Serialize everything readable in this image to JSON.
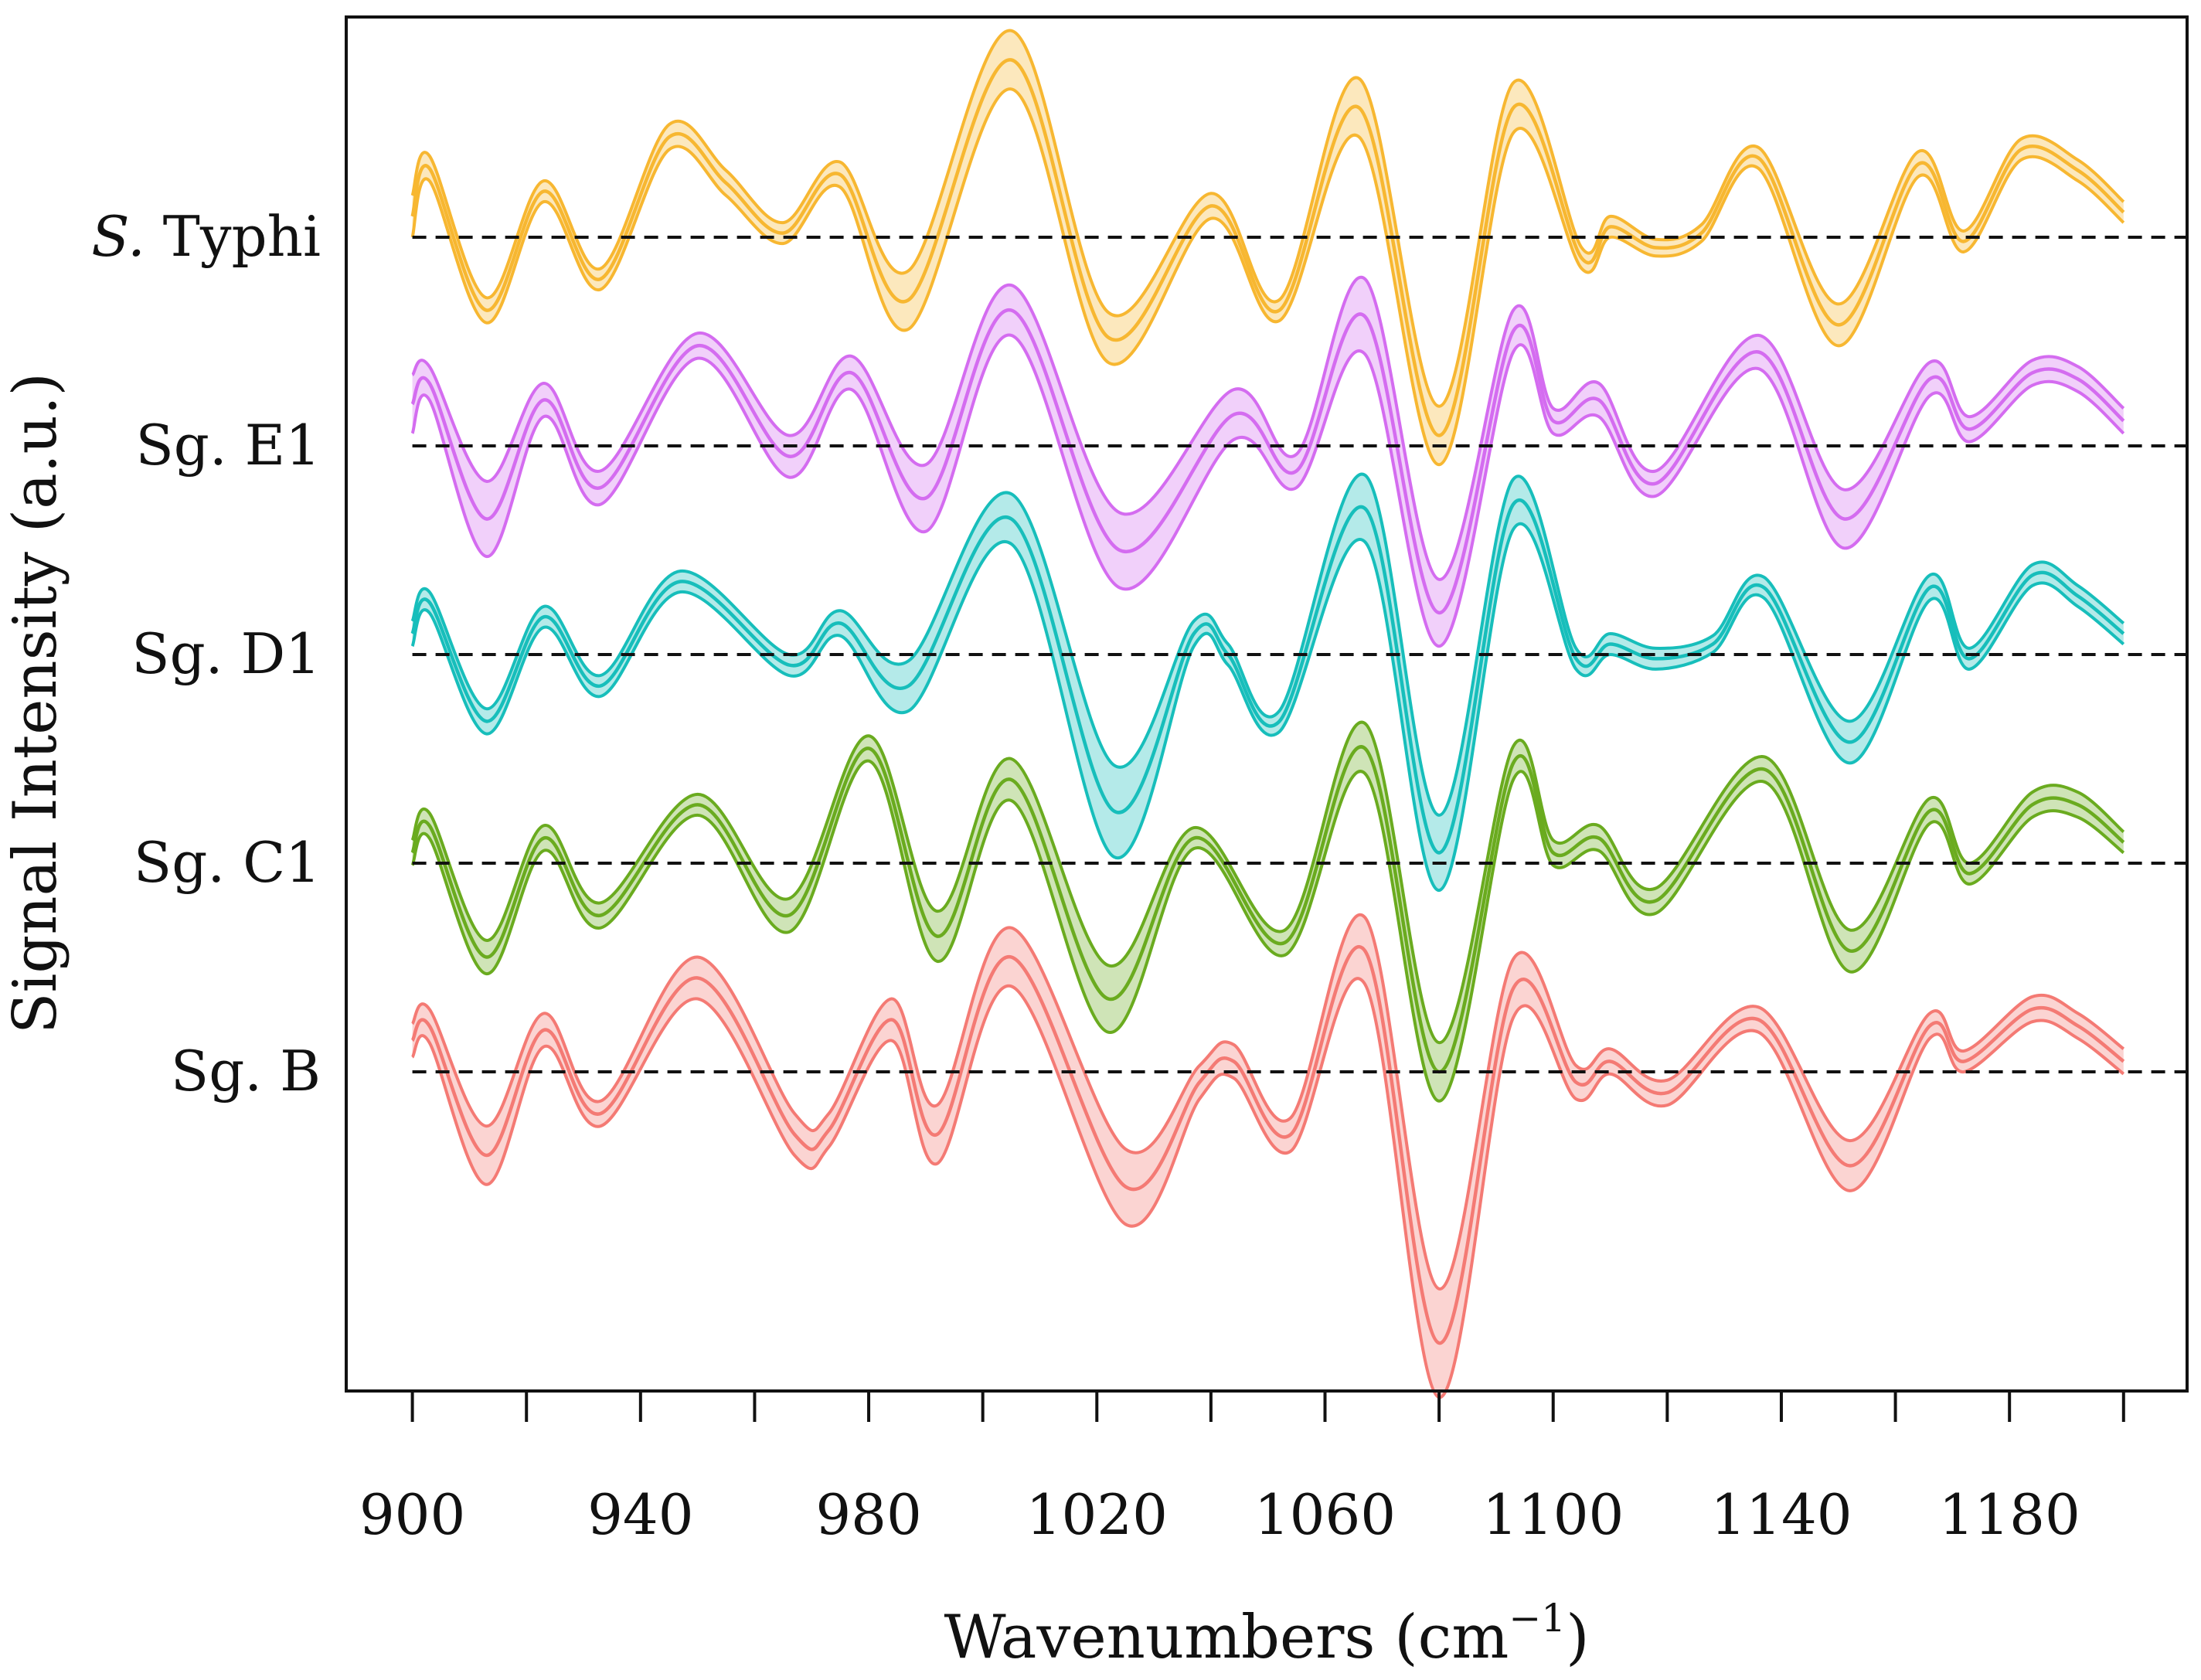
{
  "chart_data": {
    "type": "line",
    "title": "",
    "xlabel": "Wavenumbers (cm",
    "xlabel_sup": "−1",
    "xlabel_close": ")",
    "ylabel": "Signal Intensity (a.u.)",
    "xlim": [
      880,
      1205
    ],
    "ylim": [
      -1.3,
      7.2
    ],
    "xticks": [
      900,
      920,
      940,
      960,
      980,
      1000,
      1020,
      1040,
      1060,
      1080,
      1100,
      1120,
      1140,
      1160,
      1180,
      1200
    ],
    "xtick_labels": [
      "900",
      "940",
      "980",
      "1020",
      "1060",
      "1100",
      "1140",
      "1180"
    ],
    "grid": false,
    "legend": "inline labels at left of each baseline",
    "baseline_style": "dashed",
    "series": [
      {
        "name": "S. Typhi",
        "name_prefix": "S.",
        "name_rest": " Typhi",
        "color": "#F7B731",
        "offset": 6,
        "x": [
          900,
          903,
          913,
          923,
          933,
          945,
          955,
          965,
          975,
          987,
          1005,
          1022,
          1040,
          1052,
          1066,
          1080,
          1093,
          1105,
          1110,
          1118,
          1126,
          1136,
          1150,
          1164,
          1172,
          1182,
          1192,
          1200
        ],
        "mean": [
          0.1,
          0.33,
          -0.35,
          0.22,
          -0.2,
          0.48,
          0.26,
          0.02,
          0.3,
          -0.3,
          0.85,
          -0.48,
          0.15,
          -0.35,
          0.62,
          -0.95,
          0.62,
          -0.1,
          0.05,
          -0.05,
          0.02,
          0.38,
          -0.42,
          0.35,
          -0.02,
          0.42,
          0.32,
          0.12
        ],
        "band": [
          0.1,
          0.06,
          0.06,
          0.05,
          0.05,
          0.06,
          0.06,
          0.05,
          0.06,
          0.14,
          0.14,
          0.12,
          0.06,
          0.05,
          0.14,
          0.14,
          0.12,
          0.05,
          0.05,
          0.04,
          0.04,
          0.05,
          0.1,
          0.06,
          0.05,
          0.05,
          0.05,
          0.05
        ]
      },
      {
        "name": "Sg. E1",
        "name_prefix": "",
        "name_rest": "Sg. E1",
        "color": "#D46CF0",
        "offset": 5,
        "x": [
          900,
          903,
          913,
          923,
          933,
          950,
          966,
          977,
          990,
          1005,
          1024,
          1044,
          1055,
          1067,
          1080,
          1093,
          1100,
          1108,
          1118,
          1136,
          1151,
          1166,
          1173,
          1184,
          1192,
          1200
        ],
        "mean": [
          0.2,
          0.3,
          -0.35,
          0.22,
          -0.2,
          0.48,
          -0.05,
          0.35,
          -0.25,
          0.65,
          -0.5,
          0.15,
          -0.12,
          0.62,
          -0.8,
          0.55,
          0.12,
          0.22,
          -0.18,
          0.45,
          -0.35,
          0.32,
          0.08,
          0.35,
          0.32,
          0.12
        ],
        "band": [
          0.14,
          0.08,
          0.18,
          0.08,
          0.08,
          0.06,
          0.1,
          0.08,
          0.16,
          0.12,
          0.18,
          0.12,
          0.08,
          0.18,
          0.16,
          0.1,
          0.06,
          0.08,
          0.06,
          0.08,
          0.14,
          0.08,
          0.06,
          0.06,
          0.06,
          0.06
        ]
      },
      {
        "name": "Sg. D1",
        "name_prefix": "",
        "name_rest": "Sg. D1",
        "color": "#17BEBB",
        "offset": 4,
        "x": [
          900,
          903,
          913,
          923,
          933,
          947,
          966,
          975,
          987,
          1005,
          1023,
          1037,
          1043,
          1052,
          1067,
          1080,
          1093,
          1104,
          1110,
          1118,
          1128,
          1137,
          1152,
          1166,
          1173,
          1184,
          1192,
          1200
        ],
        "mean": [
          0.1,
          0.25,
          -0.32,
          0.18,
          -0.15,
          0.35,
          -0.05,
          0.15,
          -0.15,
          0.65,
          -0.75,
          0.1,
          0.0,
          -0.32,
          0.7,
          -0.95,
          0.72,
          -0.02,
          0.05,
          -0.02,
          0.05,
          0.32,
          -0.42,
          0.32,
          -0.02,
          0.38,
          0.28,
          0.1
        ],
        "band": [
          0.06,
          0.05,
          0.06,
          0.05,
          0.05,
          0.05,
          0.05,
          0.06,
          0.12,
          0.12,
          0.22,
          0.06,
          0.05,
          0.05,
          0.16,
          0.18,
          0.12,
          0.05,
          0.05,
          0.05,
          0.04,
          0.05,
          0.1,
          0.06,
          0.05,
          0.05,
          0.05,
          0.05
        ]
      },
      {
        "name": "Sg. C1",
        "name_prefix": "",
        "name_rest": "Sg. C1",
        "color": "#6AAB1F",
        "offset": 3,
        "x": [
          900,
          903,
          913,
          923,
          933,
          950,
          966,
          980,
          992,
          1005,
          1022,
          1037,
          1053,
          1067,
          1080,
          1093,
          1100,
          1108,
          1118,
          1137,
          1152,
          1166,
          1173,
          1184,
          1192,
          1200
        ],
        "mean": [
          0.05,
          0.18,
          -0.45,
          0.12,
          -0.25,
          0.28,
          -0.25,
          0.55,
          -0.35,
          0.4,
          -0.65,
          0.12,
          -0.38,
          0.55,
          -1.0,
          0.48,
          0.05,
          0.12,
          -0.18,
          0.45,
          -0.42,
          0.25,
          -0.05,
          0.28,
          0.28,
          0.1
        ],
        "band": [
          0.06,
          0.06,
          0.08,
          0.06,
          0.06,
          0.05,
          0.08,
          0.06,
          0.12,
          0.1,
          0.16,
          0.05,
          0.06,
          0.12,
          0.14,
          0.08,
          0.06,
          0.06,
          0.06,
          0.06,
          0.1,
          0.06,
          0.05,
          0.06,
          0.06,
          0.05
        ]
      },
      {
        "name": "Sg. B",
        "name_prefix": "",
        "name_rest": "Sg. B",
        "color": "#F47A74",
        "offset": 2,
        "x": [
          900,
          903,
          913,
          923,
          933,
          950,
          967,
          973,
          984,
          992,
          1005,
          1025,
          1038,
          1044,
          1054,
          1067,
          1080,
          1093,
          1104,
          1110,
          1120,
          1136,
          1152,
          1166,
          1172,
          1184,
          1192,
          1200
        ],
        "mean": [
          0.15,
          0.22,
          -0.4,
          0.2,
          -0.2,
          0.45,
          -0.3,
          -0.28,
          0.25,
          -0.3,
          0.55,
          -0.55,
          -0.05,
          0.05,
          -0.3,
          0.58,
          -1.3,
          0.4,
          -0.05,
          0.05,
          -0.1,
          0.25,
          -0.45,
          0.22,
          0.05,
          0.3,
          0.22,
          0.05
        ],
        "band": [
          0.08,
          0.08,
          0.14,
          0.08,
          0.06,
          0.1,
          0.1,
          0.08,
          0.1,
          0.14,
          0.14,
          0.18,
          0.08,
          0.08,
          0.08,
          0.16,
          0.26,
          0.14,
          0.08,
          0.06,
          0.06,
          0.06,
          0.12,
          0.06,
          0.05,
          0.06,
          0.06,
          0.06
        ]
      }
    ]
  }
}
